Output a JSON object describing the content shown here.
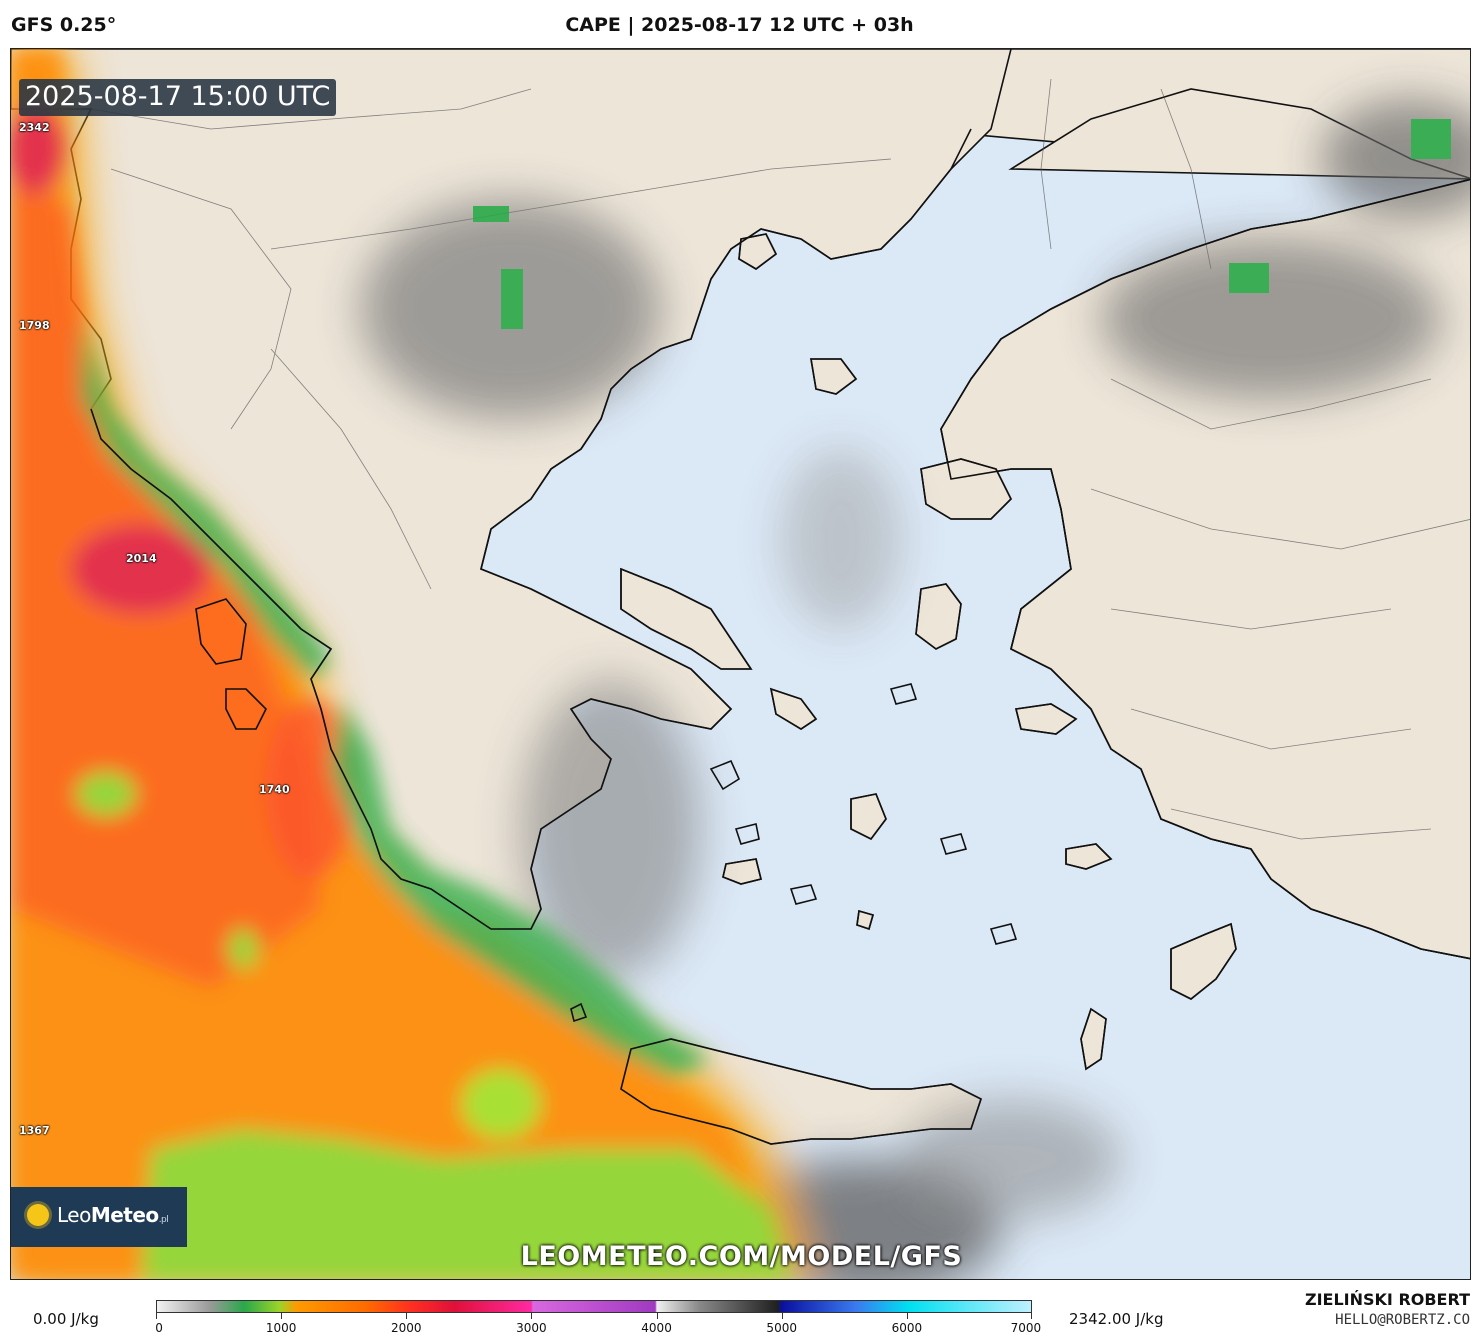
{
  "header": {
    "model": "GFS 0.25°",
    "title": "CAPE | 2025-08-17 12 UTC + 03h"
  },
  "map": {
    "timestamp": "2025-08-17 15:00 UTC",
    "value_labels": [
      {
        "text": "2342"
      },
      {
        "text": "1798"
      },
      {
        "text": "2014"
      },
      {
        "text": "1740"
      },
      {
        "text": "1367"
      }
    ],
    "logo": {
      "brand_bold": "Leo",
      "brand_rest": "Meteo",
      "suffix": ".pl"
    },
    "watermark_url": "LEOMETEO.COM/MODEL/GFS",
    "colors": {
      "sea": "#dbe8f6",
      "land": "#ede5d8",
      "coast": "#111111"
    }
  },
  "legend": {
    "min_label": "0.00 J/kg",
    "max_label": "2342.00 J/kg",
    "ticks": [
      "0",
      "1000",
      "2000",
      "3000",
      "4000",
      "5000",
      "6000",
      "7000"
    ],
    "range": [
      0,
      7000
    ]
  },
  "credits": {
    "author": "ZIELIŃSKI ROBERT",
    "email": "HELLO@ROBERTZ.CO"
  }
}
